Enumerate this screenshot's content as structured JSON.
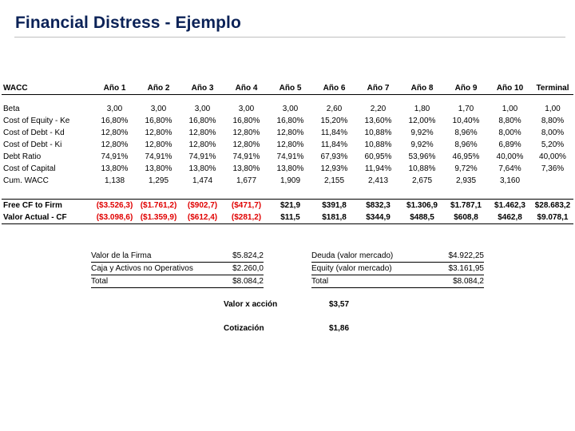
{
  "title": "Financial Distress - Ejemplo",
  "table": {
    "corner": "WACC",
    "columns": [
      "Año 1",
      "Año 2",
      "Año 3",
      "Año 4",
      "Año 5",
      "Año 6",
      "Año 7",
      "Año 8",
      "Año 9",
      "Año 10",
      "Terminal"
    ],
    "rows": [
      {
        "label": "Beta",
        "values": [
          "3,00",
          "3,00",
          "3,00",
          "3,00",
          "3,00",
          "2,60",
          "2,20",
          "1,80",
          "1,70",
          "1,00",
          "1,00"
        ]
      },
      {
        "label": "Cost of Equity - Ke",
        "values": [
          "16,80%",
          "16,80%",
          "16,80%",
          "16,80%",
          "16,80%",
          "15,20%",
          "13,60%",
          "12,00%",
          "10,40%",
          "8,80%",
          "8,80%"
        ]
      },
      {
        "label": "Cost of Debt - Kd",
        "values": [
          "12,80%",
          "12,80%",
          "12,80%",
          "12,80%",
          "12,80%",
          "11,84%",
          "10,88%",
          "9,92%",
          "8,96%",
          "8,00%",
          "8,00%"
        ]
      },
      {
        "label": "Cost of Debt - Ki",
        "values": [
          "12,80%",
          "12,80%",
          "12,80%",
          "12,80%",
          "12,80%",
          "11,84%",
          "10,88%",
          "9,92%",
          "8,96%",
          "6,89%",
          "5,20%"
        ]
      },
      {
        "label": "Debt Ratio",
        "values": [
          "74,91%",
          "74,91%",
          "74,91%",
          "74,91%",
          "74,91%",
          "67,93%",
          "60,95%",
          "53,96%",
          "46,95%",
          "40,00%",
          "40,00%"
        ]
      },
      {
        "label": "Cost of Capital",
        "values": [
          "13,80%",
          "13,80%",
          "13,80%",
          "13,80%",
          "13,80%",
          "12,93%",
          "11,94%",
          "10,88%",
          "9,72%",
          "7,64%",
          "7,36%"
        ]
      },
      {
        "label": "Cum. WACC",
        "values": [
          "1,138",
          "1,295",
          "1,474",
          "1,677",
          "1,909",
          "2,155",
          "2,413",
          "2,675",
          "2,935",
          "3,160",
          ""
        ]
      }
    ],
    "fcf": {
      "label": "Free CF to Firm",
      "values": [
        "($3.526,3)",
        "($1.761,2)",
        "($902,7)",
        "($471,7)",
        "$21,9",
        "$391,8",
        "$832,3",
        "$1.306,9",
        "$1.787,1",
        "$1.462,3",
        "$28.683,2"
      ]
    },
    "pv": {
      "label": "Valor Actual - CF",
      "values": [
        "($3.098,6)",
        "($1.359,9)",
        "($612,4)",
        "($281,2)",
        "$11,5",
        "$181,8",
        "$344,9",
        "$488,5",
        "$608,8",
        "$462,8",
        "$9.078,1"
      ]
    }
  },
  "left_summary": [
    {
      "label": "Valor de la Firma",
      "value": "$5.824,2"
    },
    {
      "label": "Caja y Activos no Operativos",
      "value": "$2.260,0"
    },
    {
      "label": "Total",
      "value": "$8.084,2"
    }
  ],
  "right_summary": [
    {
      "label": "Deuda (valor mercado)",
      "value": "$4.922,25"
    },
    {
      "label": "Equity (valor mercado)",
      "value": "$3.161,95"
    },
    {
      "label": "Total",
      "value": "$8.084,2"
    }
  ],
  "valor_accion": {
    "label": "Valor x acción",
    "value": "$3,57"
  },
  "cotizacion": {
    "label": "Cotización",
    "value": "$1,86"
  },
  "colors": {
    "title": "#0b2257",
    "negative": "#e00000"
  }
}
